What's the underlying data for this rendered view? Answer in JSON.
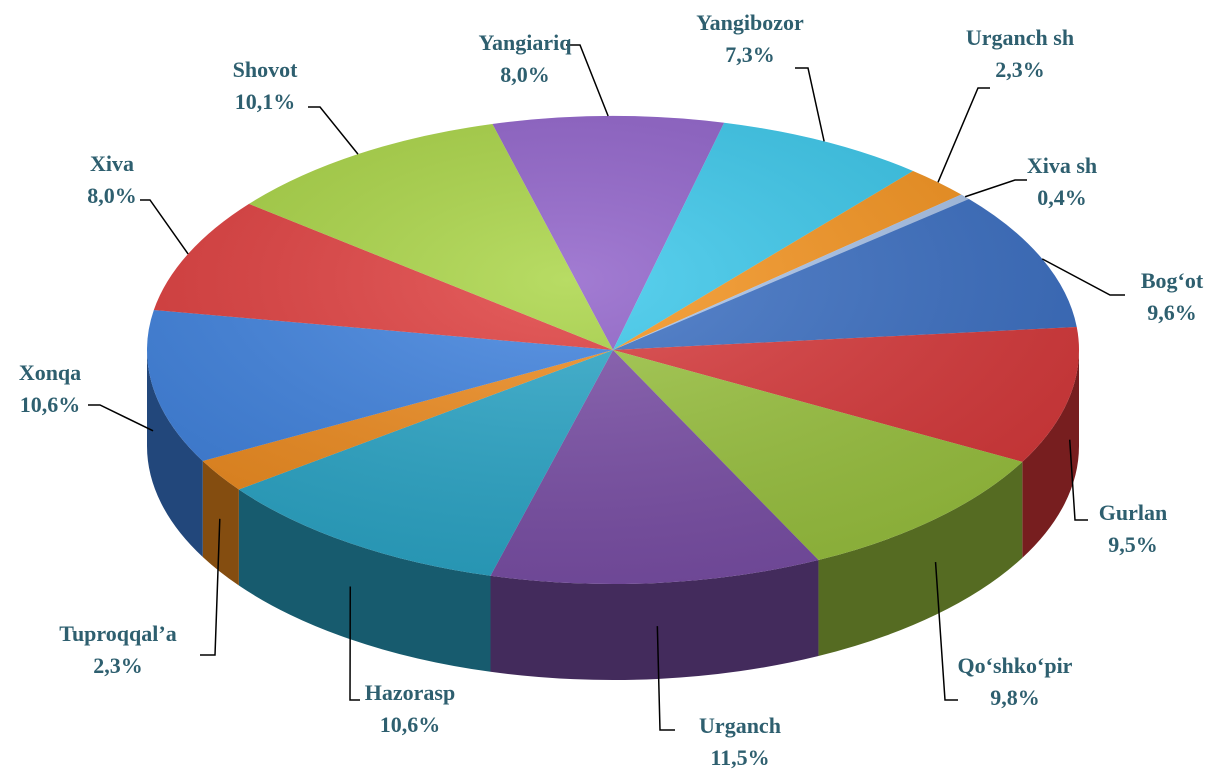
{
  "chart_data": {
    "type": "pie",
    "categories": [
      "Yangiariq",
      "Yangibozor",
      "Urganch sh",
      "Xiva sh",
      "Bog‘ot",
      "Gurlan",
      "Qo‘shko‘pir",
      "Urganch",
      "Hazorasp",
      "Tuproqqal’a",
      "Xonqa",
      "Xiva",
      "Shovot"
    ],
    "values": [
      8.0,
      7.3,
      2.3,
      0.4,
      9.6,
      9.5,
      9.8,
      11.5,
      10.6,
      2.3,
      10.6,
      8.0,
      10.1
    ],
    "value_labels": [
      "8,0%",
      "7,3%",
      "2,3%",
      "0,4%",
      "9,6%",
      "9,5%",
      "9,8%",
      "11,5%",
      "10,6%",
      "2,3%",
      "10,6%",
      "8,0%",
      "10,1%"
    ],
    "colors": [
      "#8e5fc9",
      "#38c8ec",
      "#f7941d",
      "#a9c4eb",
      "#3a6fc4",
      "#d9383a",
      "#9bc43f",
      "#7b4fa8",
      "#2aa7c9",
      "#f08c1e",
      "#3e82e0",
      "#e03c3c",
      "#a8d442"
    ]
  }
}
